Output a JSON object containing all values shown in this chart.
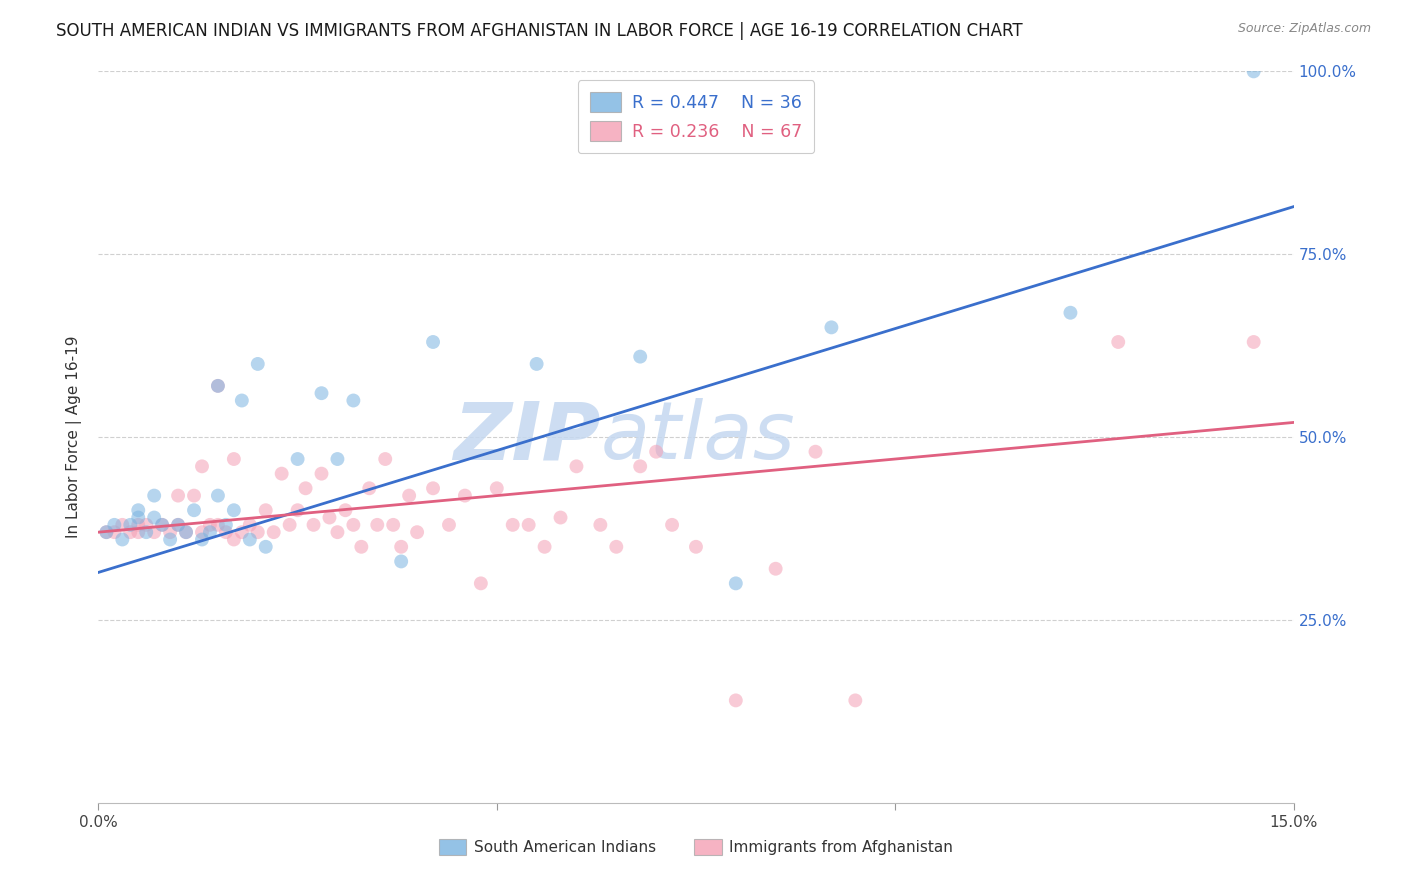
{
  "title": "SOUTH AMERICAN INDIAN VS IMMIGRANTS FROM AFGHANISTAN IN LABOR FORCE | AGE 16-19 CORRELATION CHART",
  "source": "Source: ZipAtlas.com",
  "ylabel": "In Labor Force | Age 16-19",
  "xlim": [
    0.0,
    0.15
  ],
  "ylim": [
    0.0,
    1.0
  ],
  "ytick_positions": [
    0.25,
    0.5,
    0.75,
    1.0
  ],
  "yticklabels_right": [
    "25.0%",
    "50.0%",
    "75.0%",
    "100.0%"
  ],
  "watermark_zip": "ZIP",
  "watermark_atlas": "atlas",
  "blue_scatter_x": [
    0.001,
    0.002,
    0.003,
    0.004,
    0.005,
    0.005,
    0.006,
    0.007,
    0.007,
    0.008,
    0.009,
    0.01,
    0.011,
    0.012,
    0.013,
    0.014,
    0.015,
    0.015,
    0.016,
    0.017,
    0.018,
    0.019,
    0.02,
    0.021,
    0.025,
    0.028,
    0.03,
    0.032,
    0.038,
    0.042,
    0.055,
    0.068,
    0.08,
    0.092,
    0.122,
    0.145
  ],
  "blue_scatter_y": [
    0.37,
    0.38,
    0.36,
    0.38,
    0.39,
    0.4,
    0.37,
    0.39,
    0.42,
    0.38,
    0.36,
    0.38,
    0.37,
    0.4,
    0.36,
    0.37,
    0.42,
    0.57,
    0.38,
    0.4,
    0.55,
    0.36,
    0.6,
    0.35,
    0.47,
    0.56,
    0.47,
    0.55,
    0.33,
    0.63,
    0.6,
    0.61,
    0.3,
    0.65,
    0.67,
    1.0
  ],
  "pink_scatter_x": [
    0.001,
    0.002,
    0.003,
    0.004,
    0.005,
    0.005,
    0.006,
    0.007,
    0.008,
    0.009,
    0.01,
    0.01,
    0.011,
    0.012,
    0.013,
    0.013,
    0.014,
    0.015,
    0.015,
    0.016,
    0.017,
    0.017,
    0.018,
    0.019,
    0.02,
    0.021,
    0.022,
    0.023,
    0.024,
    0.025,
    0.026,
    0.027,
    0.028,
    0.029,
    0.03,
    0.031,
    0.032,
    0.033,
    0.034,
    0.035,
    0.036,
    0.037,
    0.038,
    0.039,
    0.04,
    0.042,
    0.044,
    0.046,
    0.048,
    0.05,
    0.052,
    0.054,
    0.056,
    0.058,
    0.06,
    0.063,
    0.065,
    0.068,
    0.07,
    0.072,
    0.075,
    0.08,
    0.085,
    0.09,
    0.095,
    0.128,
    0.145
  ],
  "pink_scatter_y": [
    0.37,
    0.37,
    0.38,
    0.37,
    0.37,
    0.38,
    0.38,
    0.37,
    0.38,
    0.37,
    0.38,
    0.42,
    0.37,
    0.42,
    0.37,
    0.46,
    0.38,
    0.38,
    0.57,
    0.37,
    0.36,
    0.47,
    0.37,
    0.38,
    0.37,
    0.4,
    0.37,
    0.45,
    0.38,
    0.4,
    0.43,
    0.38,
    0.45,
    0.39,
    0.37,
    0.4,
    0.38,
    0.35,
    0.43,
    0.38,
    0.47,
    0.38,
    0.35,
    0.42,
    0.37,
    0.43,
    0.38,
    0.42,
    0.3,
    0.43,
    0.38,
    0.38,
    0.35,
    0.39,
    0.46,
    0.38,
    0.35,
    0.46,
    0.48,
    0.38,
    0.35,
    0.14,
    0.32,
    0.48,
    0.14,
    0.63,
    0.63
  ],
  "blue_line_x": [
    0.0,
    0.15
  ],
  "blue_line_y": [
    0.315,
    0.815
  ],
  "pink_line_x": [
    0.0,
    0.15
  ],
  "pink_line_y": [
    0.37,
    0.52
  ],
  "blue_color": "#7ab3e0",
  "pink_color": "#f4a0b5",
  "blue_line_color": "#3a6fcc",
  "pink_line_color": "#e06080",
  "scatter_alpha": 0.55,
  "marker_size": 100,
  "grid_color": "#d0d0d0",
  "grid_style": "--",
  "bg_color": "#ffffff",
  "title_color": "#1a1a1a",
  "title_fontsize": 12.0,
  "axis_label_color": "#333333",
  "right_tick_color": "#3a6fcc",
  "watermark_color": "#c5d8f0",
  "legend_blue_text_color": "#3a6fcc",
  "legend_pink_text_color": "#e06080"
}
